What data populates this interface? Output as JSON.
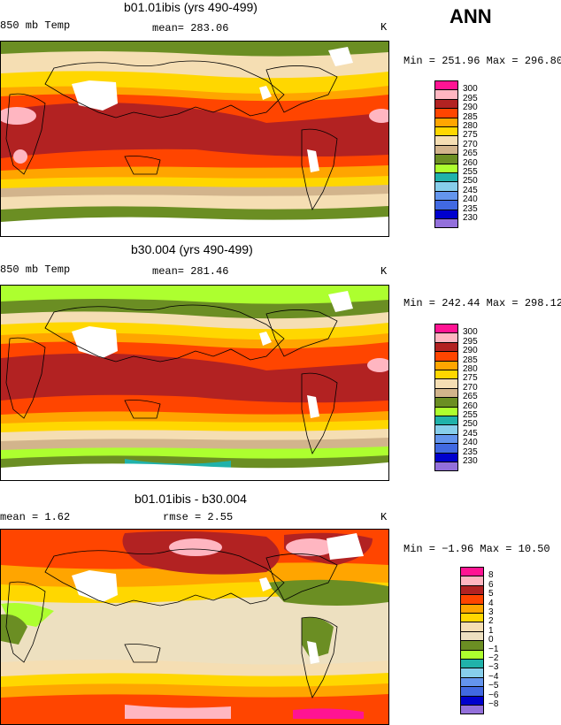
{
  "season": "ANN",
  "panels": [
    {
      "title": "b01.01ibis (yrs 490-499)",
      "variable": "850 mb Temp",
      "mean_text": "mean= 283.06",
      "units": "K",
      "minmax": "Min = 251.96 Max = 296.80",
      "colorbar": {
        "labels": [
          "300",
          "295",
          "290",
          "285",
          "280",
          "275",
          "270",
          "265",
          "260",
          "255",
          "250",
          "245",
          "240",
          "235",
          "230"
        ],
        "colors": [
          "#ff1493",
          "#ffb6c1",
          "#b22222",
          "#ff4500",
          "#ffa500",
          "#ffd700",
          "#f5deb3",
          "#d2b48c",
          "#6b8e23",
          "#adff2f",
          "#20b2aa",
          "#87ceeb",
          "#6495ed",
          "#4169e1",
          "#0000cd",
          "#9370db"
        ]
      }
    },
    {
      "title": "b30.004 (yrs 490-499)",
      "variable": "850 mb Temp",
      "mean_text": "mean= 281.46",
      "units": "K",
      "minmax": "Min = 242.44 Max = 298.12",
      "colorbar": {
        "labels": [
          "300",
          "295",
          "290",
          "285",
          "280",
          "275",
          "270",
          "265",
          "260",
          "255",
          "250",
          "245",
          "240",
          "235",
          "230"
        ],
        "colors": [
          "#ff1493",
          "#ffb6c1",
          "#b22222",
          "#ff4500",
          "#ffa500",
          "#ffd700",
          "#f5deb3",
          "#d2b48c",
          "#6b8e23",
          "#adff2f",
          "#20b2aa",
          "#87ceeb",
          "#6495ed",
          "#4169e1",
          "#0000cd",
          "#9370db"
        ]
      }
    },
    {
      "title": "b01.01ibis - b30.004",
      "mean_text": "mean =    1.62",
      "rmse_text": "rmse =    2.55",
      "units": "K",
      "minmax": "Min =  −1.96 Max =  10.50",
      "colorbar": {
        "labels": [
          "8",
          "6",
          "5",
          "4",
          "3",
          "2",
          "1",
          "0",
          "−1",
          "−2",
          "−3",
          "−4",
          "−5",
          "−6",
          "−8"
        ],
        "colors": [
          "#ff1493",
          "#ffb6c1",
          "#b22222",
          "#ff4500",
          "#ffa500",
          "#ffd700",
          "#f5deb3",
          "#ede0c0",
          "#6b8e23",
          "#adff2f",
          "#20b2aa",
          "#87ceeb",
          "#6495ed",
          "#4169e1",
          "#0000cd",
          "#9370db"
        ]
      }
    }
  ]
}
